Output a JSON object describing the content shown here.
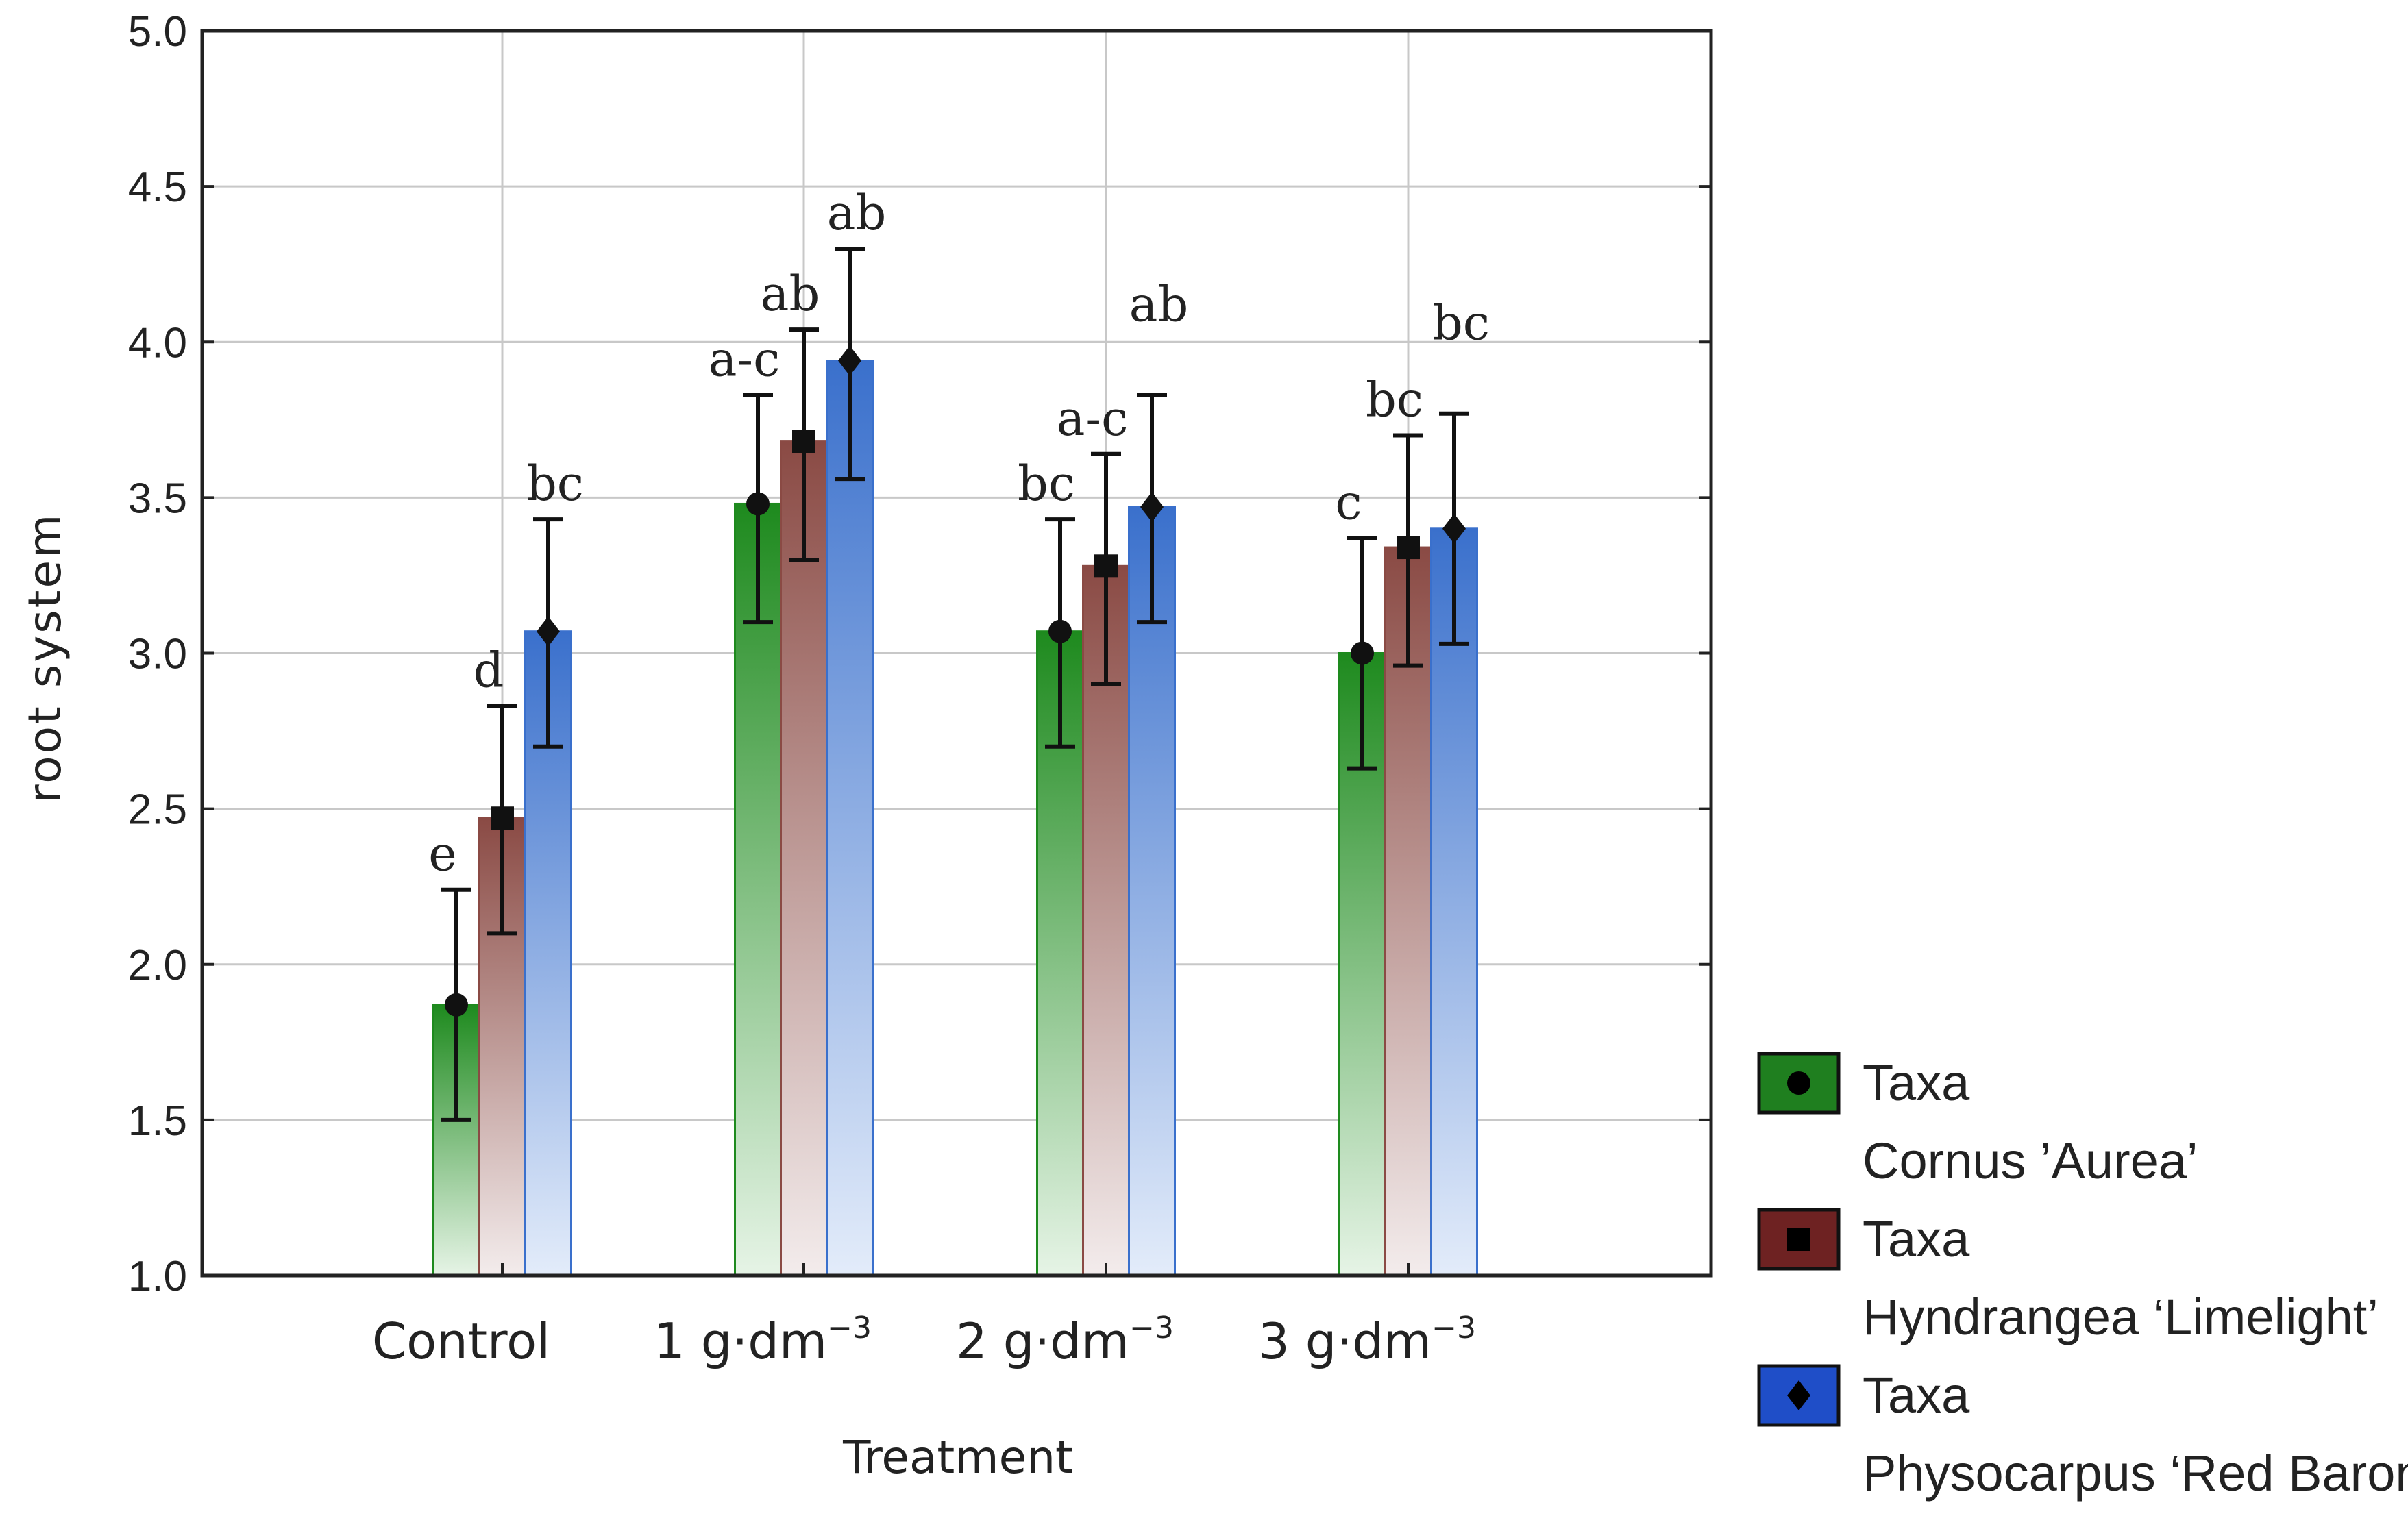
{
  "chart_data": {
    "type": "bar",
    "title": "",
    "xlabel": "Treatment",
    "ylabel": "root system",
    "ylim": [
      1.0,
      5.0
    ],
    "yticks": [
      "1.0",
      "1.5",
      "2.0",
      "2.5",
      "3.0",
      "3.5",
      "4.0",
      "4.5",
      "5.0"
    ],
    "grid": true,
    "legend_position": "bottom-right, outside plot",
    "categories": [
      {
        "base": "Control",
        "sup": ""
      },
      {
        "base": "1 g·dm",
        "sup": "−3"
      },
      {
        "base": "2 g·dm",
        "sup": "−3"
      },
      {
        "base": "3 g·dm",
        "sup": "−3"
      }
    ],
    "series": [
      {
        "name": "Taxa",
        "taxon": "Cornus ’Aurea’",
        "marker": "circle",
        "color": "#1e8a1e",
        "color_light": "#e6f4e6",
        "legend_fill": "#1f7f1f",
        "values": [
          1.87,
          3.48,
          3.07,
          3.0
        ],
        "err_low": [
          1.5,
          3.1,
          2.7,
          2.63
        ],
        "err_high": [
          2.24,
          3.83,
          3.43,
          3.37
        ],
        "labels": [
          "e",
          "a-c",
          "bc",
          "c"
        ]
      },
      {
        "name": "Taxa",
        "taxon": "Hyndrangea ‘Limelight’",
        "marker": "square",
        "color": "#8a4a44",
        "color_light": "#f3ecec",
        "legend_fill": "#6e2222",
        "values": [
          2.47,
          3.68,
          3.28,
          3.34
        ],
        "err_low": [
          2.1,
          3.3,
          2.9,
          2.96
        ],
        "err_high": [
          2.83,
          4.04,
          3.64,
          3.7
        ],
        "labels": [
          "d",
          "ab",
          "a-c",
          "bc"
        ]
      },
      {
        "name": "Taxa",
        "taxon": "Physocarpus ‘Red Baron’",
        "marker": "diamond",
        "color": "#3a70cc",
        "color_light": "#e3ecfa",
        "legend_fill": "#1f4ec8",
        "values": [
          3.07,
          3.94,
          3.47,
          3.4
        ],
        "err_low": [
          2.7,
          3.56,
          3.1,
          3.03
        ],
        "err_high": [
          3.43,
          4.3,
          3.83,
          3.77
        ],
        "labels": [
          "bc",
          "ab",
          "ab",
          "bc"
        ]
      }
    ]
  }
}
